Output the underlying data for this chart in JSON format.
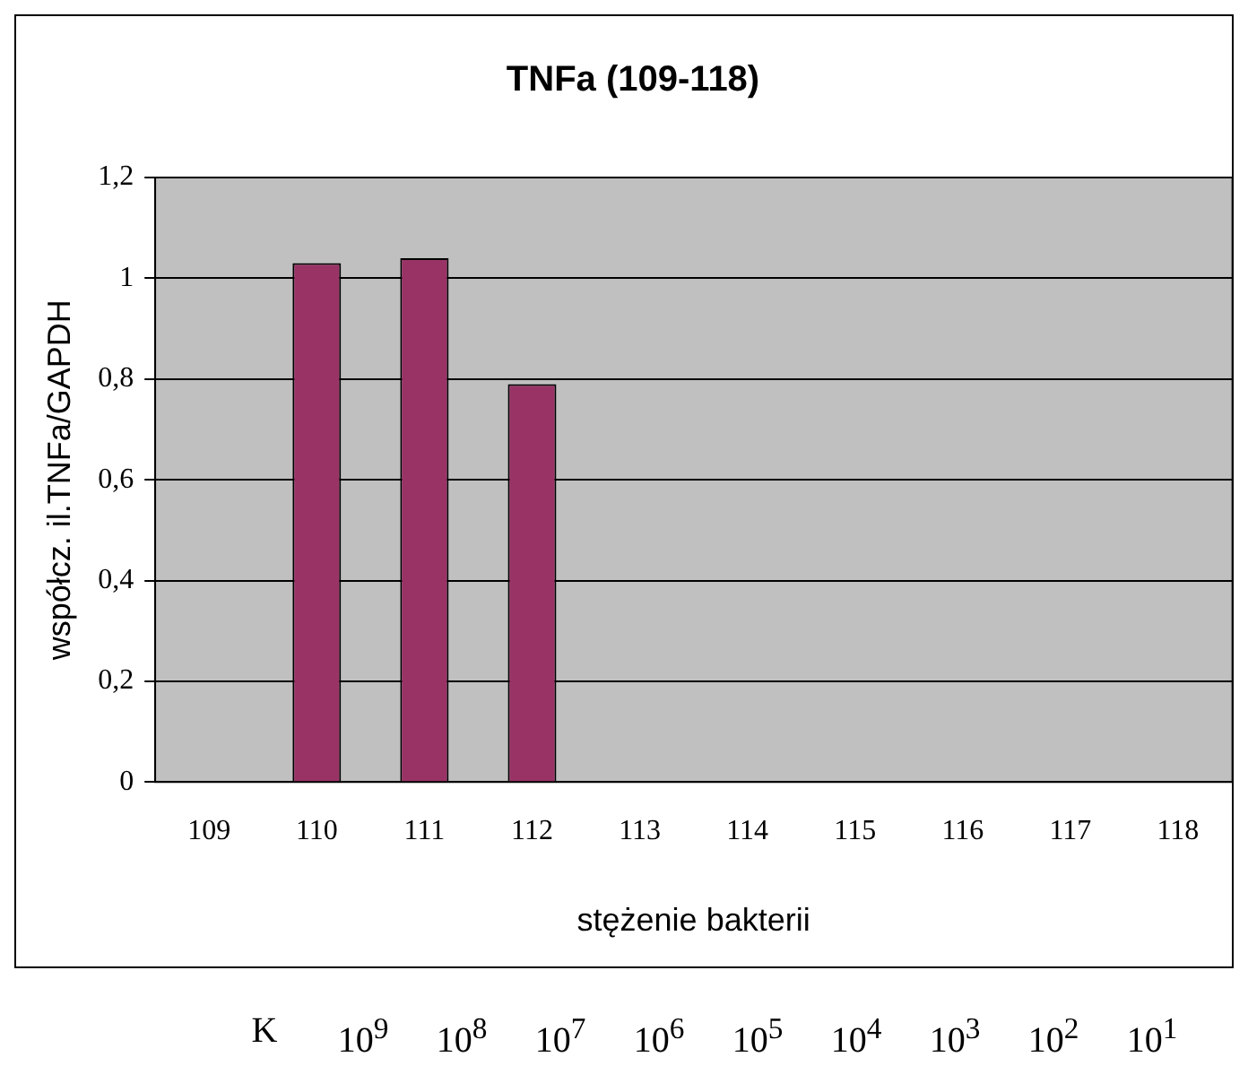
{
  "chart_data": {
    "type": "bar",
    "title": "TNFa (109-118)",
    "xlabel": "stężenie bakterii",
    "ylabel": "współcz. il.TNFa/GAPDH",
    "categories": [
      "109",
      "110",
      "111",
      "112",
      "113",
      "114",
      "115",
      "116",
      "117",
      "118"
    ],
    "values": [
      null,
      1.03,
      1.04,
      0.79,
      null,
      null,
      null,
      null,
      null,
      null
    ],
    "color": "#993366",
    "ylim": [
      0,
      1.2
    ],
    "yticks": [
      0,
      {
        "value": 0.2,
        "label": "0,2"
      },
      {
        "value": 0.4,
        "label": "0,4"
      },
      {
        "value": 0.6,
        "label": "0,6"
      },
      {
        "value": 0.8,
        "label": "0,8"
      },
      1,
      {
        "value": 1.2,
        "label": "1,2"
      }
    ],
    "grid": "y",
    "annotations": [
      "K",
      "10$^{9}$",
      "10$^{8}$",
      "10$^{7}$",
      "10$^{6}$",
      "10$^{5}$",
      "10$^{4}$",
      "10$^{3}$",
      "10$^{2}$",
      "10$^{1}$"
    ]
  }
}
